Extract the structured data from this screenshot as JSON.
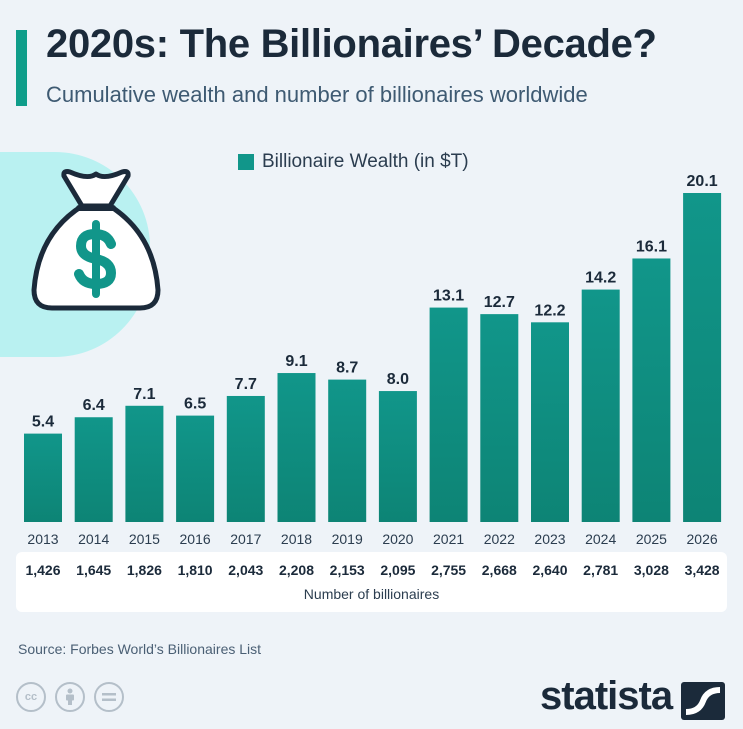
{
  "title": "2020s: The Billionaires’ Decade?",
  "subtitle": "Cumulative wealth and number of billionaires worldwide",
  "legend_label": "Billionaire Wealth (in $T)",
  "counts_label": "Number of billionaires",
  "source": "Source: Forbes World’s Billionaires List",
  "brand": "statista",
  "icons": [
    "money-bag-icon",
    "creative-commons-icon",
    "attribution-icon",
    "no-derivatives-icon",
    "statista-logo-icon"
  ],
  "colors": {
    "bar": "#11968a",
    "accent": "#0f9d8a",
    "title": "#1b2a3a",
    "background": "#eef3f8",
    "blob": "#b9f1f1"
  },
  "chart_data": {
    "type": "bar",
    "categories": [
      "2013",
      "2014",
      "2015",
      "2016",
      "2017",
      "2018",
      "2019",
      "2020",
      "2021",
      "2022",
      "2023",
      "2024",
      "2025",
      "2026"
    ],
    "series": [
      {
        "name": "Billionaire Wealth (in $T)",
        "values": [
          5.4,
          6.4,
          7.1,
          6.5,
          7.7,
          9.1,
          8.7,
          8.0,
          13.1,
          12.7,
          12.2,
          14.2,
          16.1,
          20.1
        ],
        "labels": [
          "5.4",
          "6.4",
          "7.1",
          "6.5",
          "7.7",
          "9.1",
          "8.7",
          "8.0",
          "13.1",
          "12.7",
          "12.2",
          "14.2",
          "16.1",
          "20.1"
        ]
      }
    ],
    "billionaire_counts": [
      "1,426",
      "1,645",
      "1,826",
      "1,810",
      "2,043",
      "2,208",
      "2,153",
      "2,095",
      "2,755",
      "2,668",
      "2,640",
      "2,781",
      "3,028",
      "3,428"
    ],
    "ylim": [
      0,
      20.1
    ],
    "grid": false,
    "legend": "top-center"
  }
}
